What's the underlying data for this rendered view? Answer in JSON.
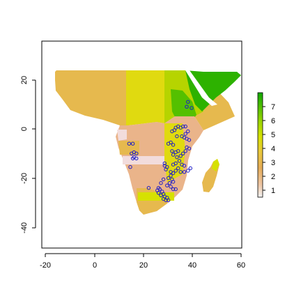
{
  "map": {
    "x_axis": {
      "range": [
        -22,
        60
      ],
      "ticks": [
        "-20",
        "0",
        "20",
        "40",
        "60"
      ]
    },
    "y_axis": {
      "range": [
        -48,
        35
      ],
      "ticks": [
        "-40",
        "-20",
        "0",
        "20"
      ]
    },
    "legend": {
      "position": "right",
      "ticks": [
        "1",
        "2",
        "3",
        "4",
        "5",
        "6",
        "7"
      ],
      "colors": [
        "#f2f2f2",
        "#eec6a4",
        "#e5ac58",
        "#e9c93a",
        "#d6e100",
        "#9dd600",
        "#54c000",
        "#10a800"
      ]
    },
    "colors": {
      "tan": "#e6b94e",
      "salmon": "#eab48a",
      "yellow": "#e0da10",
      "lime": "#b6d400",
      "green": "#2db200",
      "pink": "#f2dcdc",
      "points": "#1c1cc8"
    },
    "points": [
      [
        33,
        0.5
      ],
      [
        34,
        1
      ],
      [
        35,
        0.5
      ],
      [
        36,
        1
      ],
      [
        32.5,
        -0.5
      ],
      [
        31.5,
        -1
      ],
      [
        33.5,
        -3
      ],
      [
        35.5,
        -3
      ],
      [
        36.5,
        -3.5
      ],
      [
        37.5,
        -4
      ],
      [
        38.5,
        -4.5
      ],
      [
        37,
        -2
      ],
      [
        38,
        -1
      ],
      [
        37,
        1
      ],
      [
        37.5,
        9
      ],
      [
        38,
        11
      ],
      [
        39.5,
        8.5
      ],
      [
        14,
        -6
      ],
      [
        15,
        -10
      ],
      [
        16,
        -9.5
      ],
      [
        17,
        -10
      ],
      [
        16,
        -11.5
      ],
      [
        17,
        -12
      ],
      [
        15.5,
        -12
      ],
      [
        14.5,
        -15.5
      ],
      [
        15.5,
        -6
      ],
      [
        30,
        -6
      ],
      [
        31,
        -5.5
      ],
      [
        32,
        -6.5
      ],
      [
        31.5,
        -9
      ],
      [
        32,
        -10.5
      ],
      [
        33,
        -9.5
      ],
      [
        34,
        -9
      ],
      [
        33.5,
        -11.5
      ],
      [
        35,
        -11
      ],
      [
        36,
        -10
      ],
      [
        34.5,
        -13
      ],
      [
        33,
        -14
      ],
      [
        32,
        -14.5
      ],
      [
        35.5,
        -14.5
      ],
      [
        36.5,
        -15
      ],
      [
        34,
        -16
      ],
      [
        33,
        -17
      ],
      [
        35,
        -17.5
      ],
      [
        36.5,
        -17.5
      ],
      [
        38,
        -17
      ],
      [
        39,
        -16
      ],
      [
        37.5,
        -7.5
      ],
      [
        38.5,
        -8
      ],
      [
        37,
        -9
      ],
      [
        28.5,
        -15
      ],
      [
        29.5,
        -15.5
      ],
      [
        29,
        -16.5
      ],
      [
        28.5,
        -14
      ],
      [
        31,
        -17.5
      ],
      [
        32,
        -18
      ],
      [
        31,
        -19
      ],
      [
        30,
        -20
      ],
      [
        31.5,
        -20.5
      ],
      [
        32,
        -21.5
      ],
      [
        30.5,
        -22
      ],
      [
        29.5,
        -23
      ],
      [
        31,
        -23.5
      ],
      [
        32,
        -24.5
      ],
      [
        33,
        -24.5
      ],
      [
        26.5,
        -24.5
      ],
      [
        27.5,
        -25.5
      ],
      [
        28,
        -26.5
      ],
      [
        28.5,
        -27.5
      ],
      [
        29.5,
        -28
      ],
      [
        30,
        -29
      ],
      [
        29,
        -29
      ],
      [
        28,
        -28.5
      ],
      [
        27,
        -27
      ],
      [
        26,
        -26
      ],
      [
        25.5,
        -25
      ],
      [
        26,
        -24
      ],
      [
        22,
        -24
      ],
      [
        27,
        -22
      ],
      [
        28,
        -20.5
      ]
    ]
  }
}
